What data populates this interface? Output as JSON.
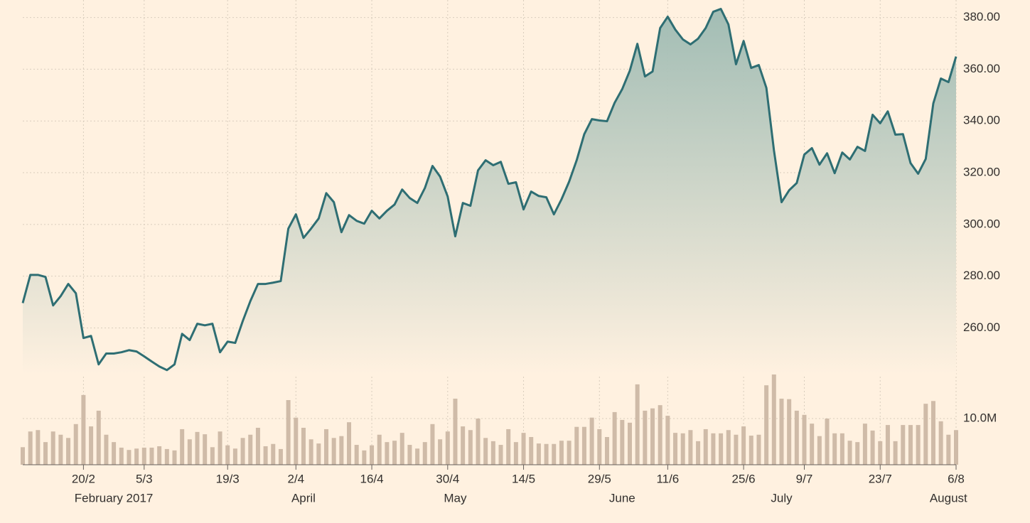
{
  "chart_data": {
    "type": "line",
    "categories": [
      null,
      null,
      null,
      null,
      null,
      null,
      null,
      null,
      "20/2",
      null,
      null,
      null,
      null,
      null,
      null,
      null,
      "5/3",
      null,
      null,
      null,
      null,
      null,
      null,
      null,
      null,
      null,
      null,
      "19/3",
      null,
      null,
      null,
      null,
      null,
      null,
      null,
      null,
      "2/4",
      null,
      null,
      null,
      null,
      null,
      null,
      null,
      null,
      null,
      "16/4",
      null,
      null,
      null,
      null,
      null,
      null,
      null,
      null,
      null,
      "30/4",
      null,
      null,
      null,
      null,
      null,
      null,
      null,
      null,
      null,
      "14/5",
      null,
      null,
      null,
      null,
      null,
      null,
      null,
      null,
      null,
      "29/5",
      null,
      null,
      null,
      null,
      null,
      null,
      null,
      null,
      "11/6",
      null,
      null,
      null,
      null,
      null,
      null,
      null,
      null,
      null,
      "25/6",
      null,
      null,
      null,
      null,
      null,
      null,
      null,
      "9/7",
      null,
      null,
      null,
      null,
      null,
      null,
      null,
      null,
      null,
      "23/7",
      null,
      null,
      null,
      null,
      null,
      null,
      null,
      null,
      null,
      "6/8"
    ],
    "months": [
      null,
      null,
      null,
      null,
      null,
      null,
      null,
      null,
      null,
      null,
      null,
      null,
      "February 2017",
      null,
      null,
      null,
      null,
      null,
      null,
      null,
      null,
      null,
      null,
      null,
      null,
      null,
      null,
      null,
      null,
      null,
      null,
      null,
      null,
      null,
      null,
      null,
      null,
      "April",
      null,
      null,
      null,
      null,
      null,
      null,
      null,
      null,
      null,
      null,
      null,
      null,
      null,
      null,
      null,
      null,
      null,
      null,
      null,
      "May",
      null,
      null,
      null,
      null,
      null,
      null,
      null,
      null,
      null,
      null,
      null,
      null,
      null,
      null,
      null,
      null,
      null,
      null,
      null,
      null,
      null,
      "June",
      null,
      null,
      null,
      null,
      null,
      null,
      null,
      null,
      null,
      null,
      null,
      null,
      null,
      null,
      null,
      null,
      null,
      null,
      null,
      null,
      "July",
      null,
      null,
      null,
      null,
      null,
      null,
      null,
      null,
      null,
      null,
      null,
      null,
      null,
      null,
      null,
      null,
      null,
      null,
      null,
      null,
      null,
      "August",
      null
    ],
    "values": [
      269.6,
      280.5,
      280.5,
      279.7,
      268.7,
      272.3,
      277.0,
      273.4,
      256.1,
      256.9,
      245.9,
      250.1,
      250.1,
      250.6,
      251.4,
      250.9,
      249.0,
      247.0,
      245.1,
      243.7,
      245.9,
      257.7,
      255.3,
      261.6,
      261.0,
      261.6,
      250.6,
      254.7,
      254.2,
      262.7,
      270.4,
      277.0,
      277.0,
      277.5,
      278.1,
      298.4,
      303.9,
      294.8,
      298.4,
      302.3,
      312.1,
      308.6,
      297.0,
      303.6,
      301.4,
      300.3,
      305.3,
      302.3,
      305.3,
      307.7,
      313.5,
      310.2,
      308.3,
      314.1,
      322.6,
      318.5,
      310.8,
      295.4,
      308.3,
      307.2,
      320.9,
      324.8,
      322.9,
      324.2,
      315.7,
      316.3,
      305.8,
      312.7,
      311.0,
      310.5,
      303.9,
      309.7,
      316.5,
      324.8,
      334.9,
      340.7,
      340.2,
      339.9,
      347.0,
      352.3,
      359.4,
      369.8,
      357.2,
      359.1,
      375.9,
      380.3,
      375.3,
      371.5,
      369.6,
      371.8,
      375.9,
      382.2,
      383.3,
      377.3,
      361.9,
      370.9,
      360.5,
      361.6,
      352.8,
      328.6,
      308.6,
      313.2,
      316.0,
      327.0,
      329.5,
      323.1,
      327.5,
      319.8,
      327.8,
      325.1,
      330.0,
      328.4,
      342.4,
      339.1,
      343.7,
      334.7,
      334.9,
      323.7,
      319.6,
      325.3,
      346.8,
      356.4,
      355.0,
      364.9
    ],
    "color": "#2e6e73",
    "fill_color": "#9dbab2",
    "ylim": [
      242,
      384
    ],
    "yticks": [
      {
        "value": 260,
        "label": "260.00"
      },
      {
        "value": 280,
        "label": "280.00"
      },
      {
        "value": 300,
        "label": "300.00"
      },
      {
        "value": 320,
        "label": "320.00"
      },
      {
        "value": 340,
        "label": "340.00"
      },
      {
        "value": 360,
        "label": "360.00"
      },
      {
        "value": 380,
        "label": "380.00"
      }
    ],
    "grid": true,
    "volume": {
      "type": "bar",
      "color": "#cfbba8",
      "ylim": [
        0,
        20
      ],
      "yticks": [
        {
          "value": 10,
          "label": "10.0M"
        }
      ],
      "values": [
        3.8,
        7.2,
        7.5,
        4.9,
        7.2,
        6.5,
        5.8,
        8.8,
        15.1,
        8.3,
        11.7,
        6.5,
        4.9,
        3.7,
        3.2,
        3.5,
        3.7,
        3.7,
        4.0,
        3.4,
        3.1,
        7.7,
        5.5,
        7.1,
        6.6,
        3.8,
        7.2,
        4.2,
        3.5,
        5.8,
        6.5,
        8.0,
        4.0,
        4.5,
        3.4,
        14.0,
        10.2,
        8.0,
        5.5,
        4.6,
        7.7,
        5.8,
        6.2,
        9.2,
        4.3,
        3.1,
        4.2,
        6.5,
        4.9,
        5.2,
        6.9,
        4.3,
        3.5,
        4.9,
        8.8,
        5.5,
        7.2,
        14.3,
        8.3,
        7.5,
        10.0,
        5.8,
        5.1,
        4.3,
        7.7,
        4.9,
        6.9,
        6.0,
        4.6,
        4.5,
        4.5,
        5.2,
        5.2,
        8.2,
        8.2,
        10.2,
        7.7,
        6.0,
        11.4,
        9.7,
        9.1,
        17.4,
        11.7,
        12.2,
        12.9,
        10.6,
        6.9,
        6.8,
        7.5,
        5.1,
        7.7,
        6.8,
        6.8,
        7.5,
        6.5,
        8.3,
        6.3,
        6.5,
        17.2,
        19.7,
        14.3,
        14.2,
        11.7,
        10.8,
        8.9,
        6.2,
        10.0,
        6.8,
        6.8,
        5.2,
        4.9,
        8.9,
        7.4,
        5.1,
        8.6,
        5.1,
        8.6,
        8.6,
        8.6,
        13.2,
        13.8,
        9.4,
        6.5,
        7.5
      ]
    }
  }
}
